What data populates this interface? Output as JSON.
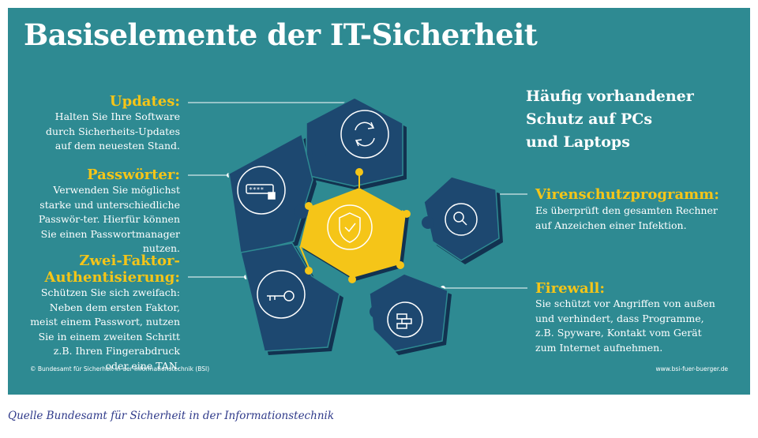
{
  "title": "Basiselemente der IT-Sicherheit",
  "left": [
    {
      "heading": "Updates:",
      "text": "Halten Sie Ihre Software durch Sicherheits-Updates auf dem neuesten Stand."
    },
    {
      "heading": "Passwörter:",
      "text": "Verwenden Sie möglichst starke und unterschiedliche Passwör-ter. Hierfür können Sie einen Passwortmanager nutzen."
    },
    {
      "heading": "Zwei-Faktor-",
      "heading2": "Authentisierung:",
      "text": "Schützen Sie sich zweifach: Neben dem ersten Faktor, meist einem Passwort, nutzen Sie in einem zweiten Schritt z.B. Ihren Fingerabdruck oder eine TAN."
    }
  ],
  "right": {
    "heading_lines": [
      "Häufig vorhandener",
      "Schutz auf PCs",
      "und Laptops"
    ],
    "items": [
      {
        "heading": "Virenschutzprogramm:",
        "text": "Es überprüft den gesamten Rechner auf Anzeichen einer Infektion."
      },
      {
        "heading": "Firewall:",
        "text": "Sie schützt vor Angriffen von außen und verhindert, dass Programme, z.B. Spyware, Kontakt vom Gerät zum Internet aufnehmen."
      }
    ]
  },
  "footer_left": "© Bundesamt für Sicherheit in der Informationstechnik (BSI)",
  "footer_right": "www.bsi-fuer-buerger.de",
  "caption": "Quelle Bundesamt für Sicherheit in der Informationstechnik",
  "colors": {
    "background": "#2e8a92",
    "accent_yellow": "#f5c518",
    "piece_blue": "#1d4870",
    "piece_shadow": "#123250",
    "caption_blue": "#2f3a8a"
  },
  "icons": [
    "refresh-icon",
    "password-icon",
    "key-icon",
    "shield-check-icon",
    "virus-search-icon",
    "firewall-icon"
  ]
}
